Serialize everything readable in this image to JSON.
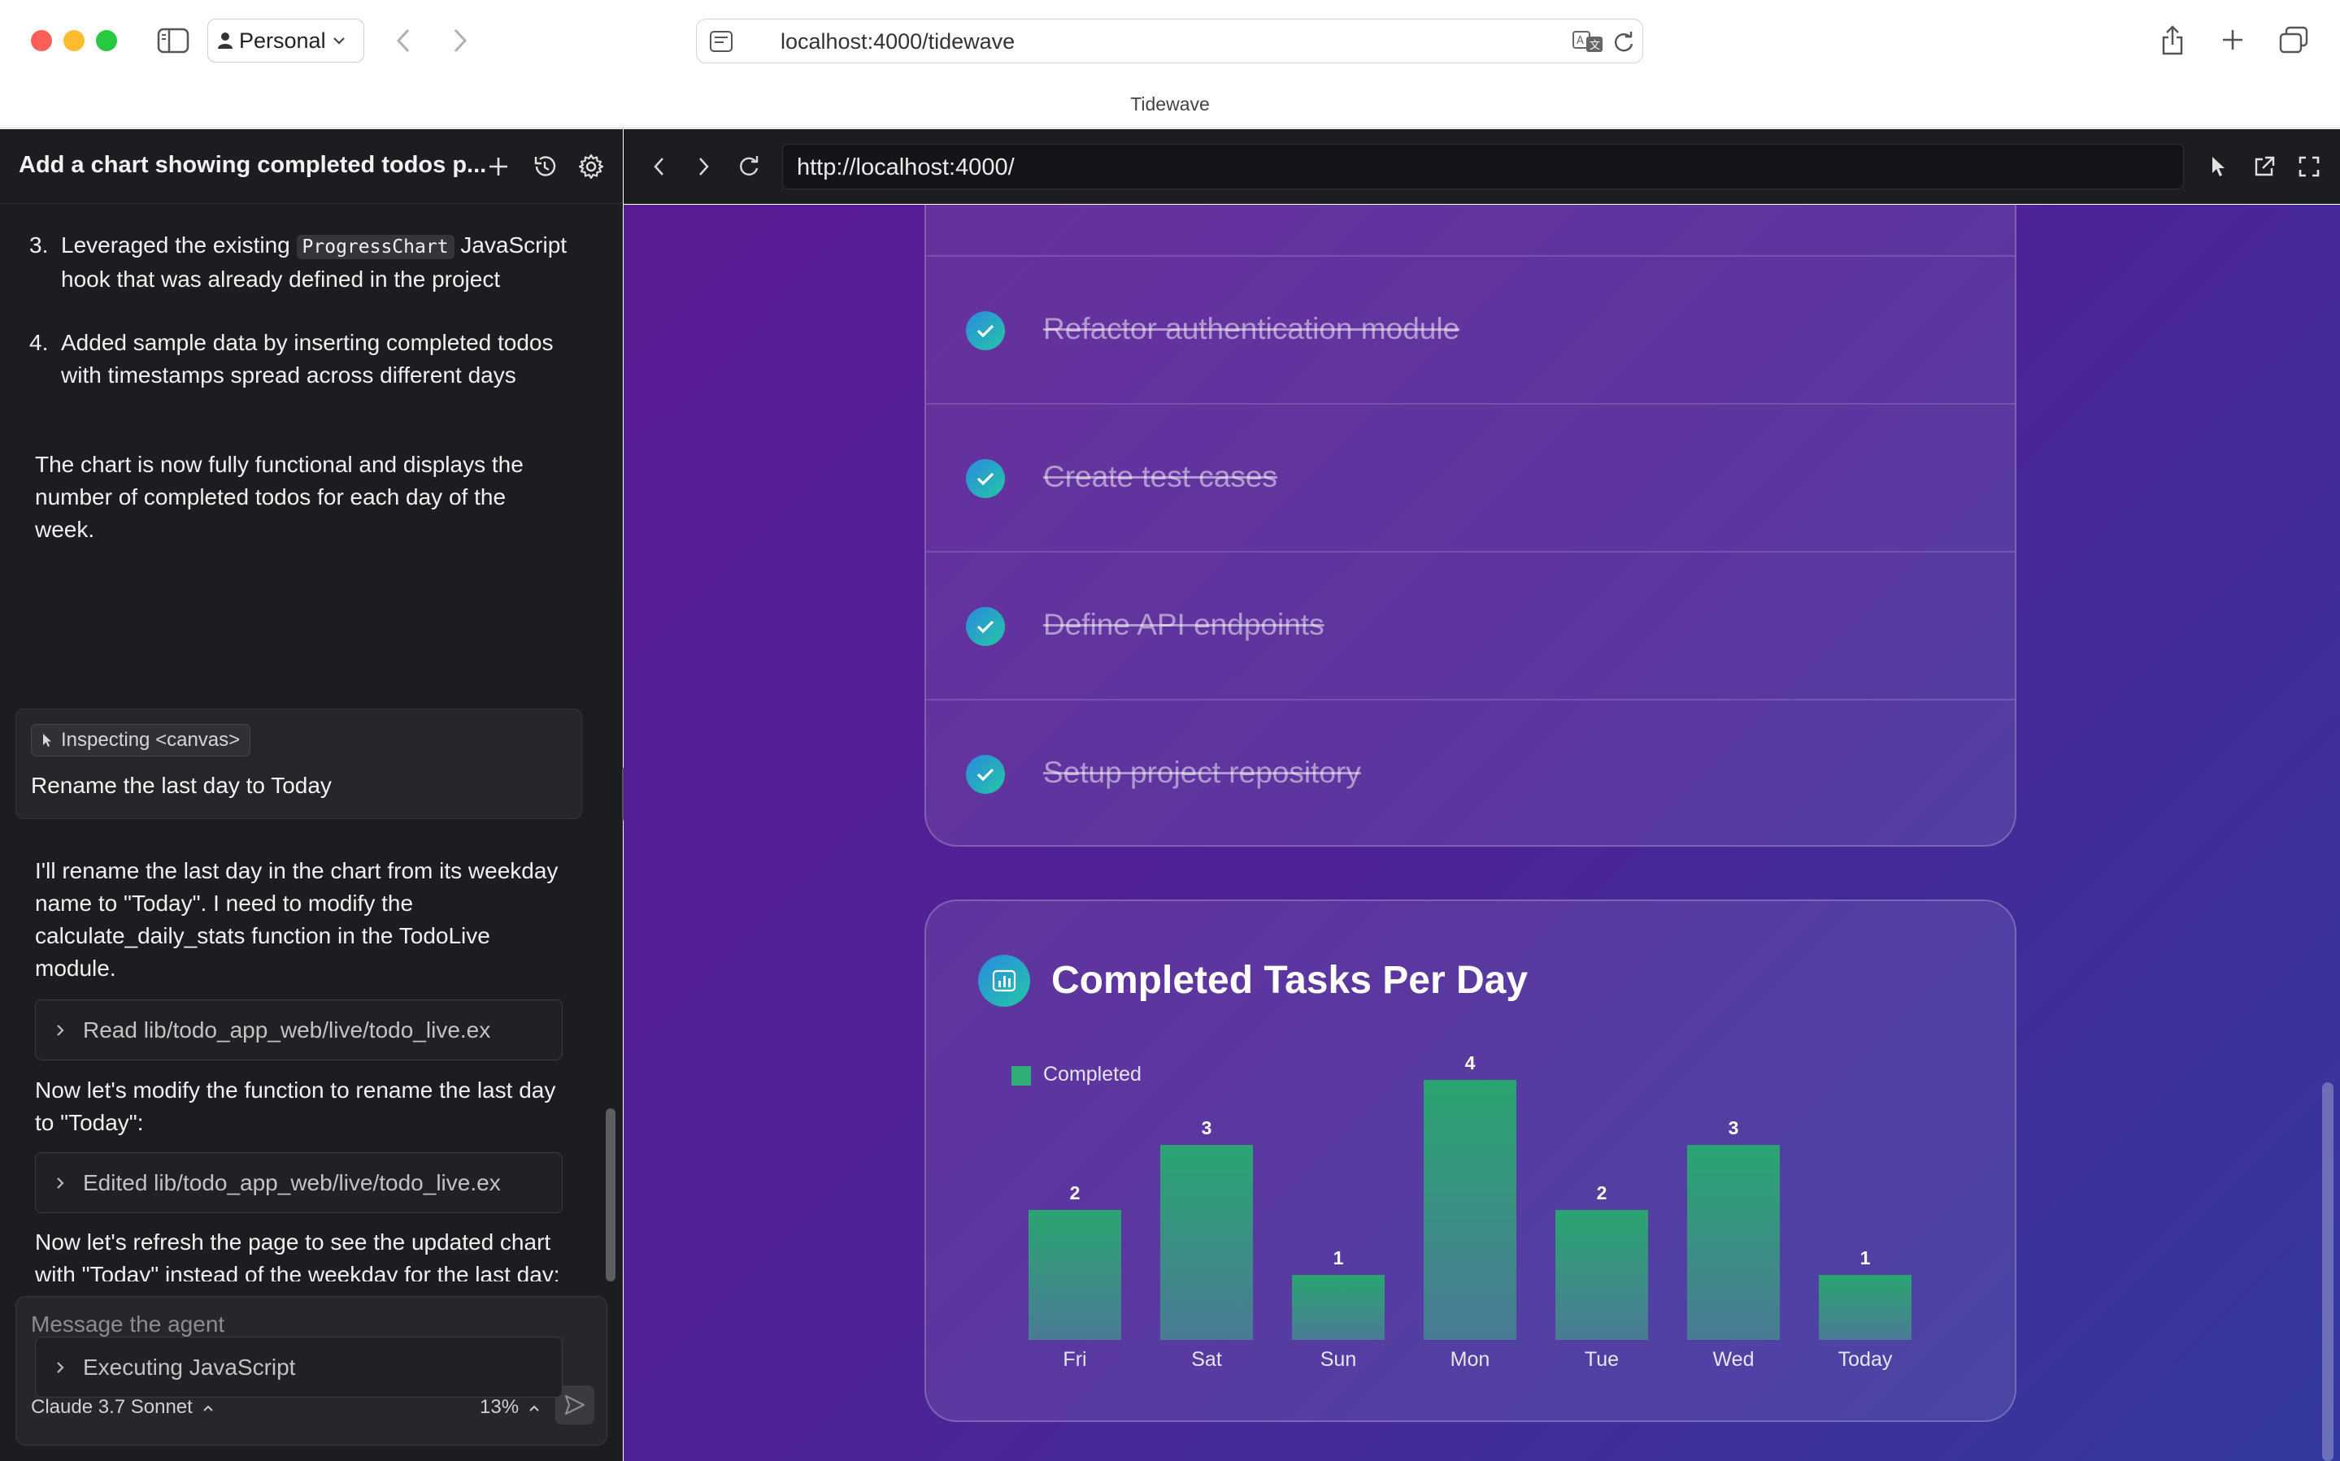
{
  "browser": {
    "profile_label": "Personal",
    "address": "localhost:4000/tidewave",
    "tab_title": "Tidewave"
  },
  "agent": {
    "conversation_title": "Add a chart showing completed todos p...",
    "list_items": [
      {
        "num": "3.",
        "pre": "Leveraged the existing ",
        "code": "ProgressChart",
        "post": " JavaScript hook that was already defined in the project"
      },
      {
        "num": "4.",
        "text": "Added sample data by inserting completed todos with timestamps spread across different days"
      }
    ],
    "summary": "The chart is now fully functional and displays the number of completed todos for each day of the week.",
    "user_message": {
      "inspect_label": "Inspecting <canvas>",
      "text": "Rename the last day to Today"
    },
    "reply_1": "I'll rename the last day in the chart from its weekday name to \"Today\". I need to modify the calculate_daily_stats function in the TodoLive module.",
    "tool_1": "Read lib/todo_app_web/live/todo_live.ex",
    "reply_2": "Now let's modify the function to rename the last day to \"Today\":",
    "tool_2": "Edited lib/todo_app_web/live/todo_live.ex",
    "reply_3": "Now let's refresh the page to see the updated chart with \"Today\" instead of the weekday for the last day:",
    "tool_3": "Executing JavaScript",
    "input_placeholder": "Message the agent",
    "model": "Claude 3.7 Sonnet",
    "context_pct": "13%"
  },
  "preview": {
    "url": "http://localhost:4000/",
    "todos": [
      "Refactor authentication module",
      "Create test cases",
      "Define API endpoints",
      "Setup project repository"
    ]
  },
  "chart_data": {
    "type": "bar",
    "title": "Completed Tasks Per Day",
    "categories": [
      "Fri",
      "Sat",
      "Sun",
      "Mon",
      "Tue",
      "Wed",
      "Today"
    ],
    "series": [
      {
        "name": "Completed",
        "values": [
          2,
          3,
          1,
          4,
          2,
          3,
          1
        ]
      }
    ],
    "legend_position": "top-left",
    "ylim": [
      0,
      4
    ],
    "grid": false,
    "colors": {
      "bar": "#2fae78"
    }
  }
}
